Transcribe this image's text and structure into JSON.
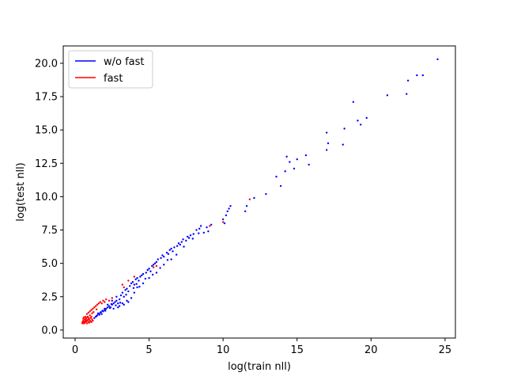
{
  "chart_data": {
    "type": "scatter",
    "title": "",
    "xlabel": "log(train nll)",
    "ylabel": "log(test nll)",
    "xlim": [
      -0.8,
      25.7
    ],
    "ylim": [
      -0.6,
      21.3
    ],
    "xticks": [
      0,
      5,
      10,
      15,
      20,
      25
    ],
    "xtick_labels": [
      "0",
      "5",
      "10",
      "15",
      "20",
      "25"
    ],
    "yticks": [
      0.0,
      2.5,
      5.0,
      7.5,
      10.0,
      12.5,
      15.0,
      17.5,
      20.0
    ],
    "ytick_labels": [
      "0.0",
      "2.5",
      "5.0",
      "7.5",
      "10.0",
      "12.5",
      "15.0",
      "17.5",
      "20.0"
    ],
    "grid": false,
    "legend_position": "top-left",
    "series": [
      {
        "name": "w/o fast",
        "color": "#0000ff",
        "points": [
          [
            1.5,
            1.1
          ],
          [
            1.6,
            1.2
          ],
          [
            1.7,
            1.3
          ],
          [
            1.8,
            1.2
          ],
          [
            1.9,
            1.4
          ],
          [
            2.0,
            1.5
          ],
          [
            1.4,
            1.0
          ],
          [
            1.55,
            1.25
          ],
          [
            1.75,
            1.35
          ],
          [
            1.65,
            1.15
          ],
          [
            2.1,
            1.6
          ],
          [
            2.2,
            1.7
          ],
          [
            2.3,
            1.8
          ],
          [
            2.4,
            1.7
          ],
          [
            2.5,
            1.9
          ],
          [
            2.6,
            2.0
          ],
          [
            2.7,
            2.1
          ],
          [
            2.8,
            2.2
          ],
          [
            2.9,
            2.0
          ],
          [
            3.0,
            2.3
          ],
          [
            2.2,
            1.9
          ],
          [
            2.5,
            2.2
          ],
          [
            2.8,
            2.5
          ],
          [
            3.1,
            2.6
          ],
          [
            3.2,
            2.8
          ],
          [
            3.3,
            2.5
          ],
          [
            3.4,
            3.0
          ],
          [
            3.5,
            3.1
          ],
          [
            3.6,
            2.9
          ],
          [
            3.7,
            3.3
          ],
          [
            3.0,
            1.8
          ],
          [
            3.2,
            2.0
          ],
          [
            3.5,
            2.2
          ],
          [
            3.8,
            2.4
          ],
          [
            4.0,
            2.8
          ],
          [
            2.6,
            1.6
          ],
          [
            2.9,
            1.7
          ],
          [
            3.3,
            1.9
          ],
          [
            3.6,
            2.1
          ],
          [
            2.0,
            1.6
          ],
          [
            3.8,
            3.5
          ],
          [
            3.9,
            3.6
          ],
          [
            4.0,
            3.4
          ],
          [
            4.1,
            3.8
          ],
          [
            4.2,
            3.9
          ],
          [
            4.3,
            3.7
          ],
          [
            4.4,
            4.0
          ],
          [
            4.5,
            4.1
          ],
          [
            4.6,
            4.2
          ],
          [
            4.8,
            4.3
          ],
          [
            4.9,
            4.5
          ],
          [
            5.0,
            4.6
          ],
          [
            5.1,
            4.4
          ],
          [
            5.2,
            4.8
          ],
          [
            5.3,
            4.9
          ],
          [
            5.4,
            5.0
          ],
          [
            5.5,
            5.1
          ],
          [
            5.6,
            5.3
          ],
          [
            5.8,
            5.4
          ],
          [
            5.9,
            5.6
          ],
          [
            6.0,
            5.5
          ],
          [
            6.2,
            5.8
          ],
          [
            6.3,
            5.7
          ],
          [
            6.4,
            6.0
          ],
          [
            6.5,
            6.1
          ],
          [
            6.6,
            5.9
          ],
          [
            6.7,
            6.2
          ],
          [
            6.9,
            6.3
          ],
          [
            7.0,
            6.5
          ],
          [
            7.1,
            6.4
          ],
          [
            7.2,
            6.6
          ],
          [
            7.3,
            6.8
          ],
          [
            7.5,
            6.7
          ],
          [
            7.6,
            7.0
          ],
          [
            7.7,
            6.9
          ],
          [
            7.8,
            7.1
          ],
          [
            8.0,
            7.2
          ],
          [
            8.2,
            7.5
          ],
          [
            8.4,
            7.6
          ],
          [
            8.5,
            7.8
          ],
          [
            8.7,
            7.3
          ],
          [
            8.9,
            7.7
          ],
          [
            9.0,
            7.4
          ],
          [
            9.2,
            7.9
          ],
          [
            4.6,
            3.5
          ],
          [
            4.2,
            3.2
          ],
          [
            5.0,
            3.9
          ],
          [
            5.5,
            4.3
          ],
          [
            6.0,
            4.9
          ],
          [
            6.5,
            5.3
          ],
          [
            10.0,
            8.3
          ],
          [
            10.1,
            8.0
          ],
          [
            10.2,
            8.6
          ],
          [
            10.3,
            8.9
          ],
          [
            10.4,
            9.1
          ],
          [
            10.5,
            9.3
          ],
          [
            11.5,
            8.9
          ],
          [
            11.6,
            9.3
          ],
          [
            12.1,
            9.9
          ],
          [
            12.9,
            10.2
          ],
          [
            13.6,
            11.5
          ],
          [
            13.9,
            10.8
          ],
          [
            14.3,
            13.0
          ],
          [
            14.5,
            12.6
          ],
          [
            14.8,
            12.1
          ],
          [
            15.0,
            12.8
          ],
          [
            15.6,
            13.1
          ],
          [
            15.8,
            12.4
          ],
          [
            14.2,
            11.9
          ],
          [
            17.0,
            14.8
          ],
          [
            17.1,
            14.0
          ],
          [
            17.0,
            13.5
          ],
          [
            18.1,
            13.9
          ],
          [
            18.2,
            15.1
          ],
          [
            18.8,
            17.1
          ],
          [
            19.1,
            15.7
          ],
          [
            19.3,
            15.4
          ],
          [
            19.7,
            15.9
          ],
          [
            21.1,
            17.6
          ],
          [
            22.4,
            17.7
          ],
          [
            22.5,
            18.7
          ],
          [
            23.1,
            19.1
          ],
          [
            23.5,
            19.1
          ],
          [
            24.5,
            20.3
          ],
          [
            1.3,
            0.9
          ],
          [
            1.45,
            1.05
          ],
          [
            1.85,
            1.45
          ],
          [
            2.05,
            1.45
          ],
          [
            2.35,
            1.65
          ],
          [
            2.45,
            1.95
          ],
          [
            2.75,
            1.85
          ],
          [
            3.05,
            2.05
          ],
          [
            3.45,
            2.65
          ],
          [
            3.95,
            3.15
          ],
          [
            4.15,
            3.45
          ],
          [
            4.35,
            3.25
          ],
          [
            4.75,
            3.85
          ],
          [
            5.25,
            4.15
          ],
          [
            5.75,
            4.65
          ],
          [
            6.25,
            5.25
          ],
          [
            6.85,
            5.65
          ],
          [
            7.35,
            6.25
          ],
          [
            7.95,
            6.85
          ],
          [
            8.35,
            7.25
          ]
        ]
      },
      {
        "name": "fast",
        "color": "#ff0000",
        "points": [
          [
            0.5,
            0.6
          ],
          [
            0.55,
            0.7
          ],
          [
            0.6,
            0.5
          ],
          [
            0.65,
            0.8
          ],
          [
            0.7,
            0.6
          ],
          [
            0.75,
            0.9
          ],
          [
            0.8,
            0.7
          ],
          [
            0.85,
            1.0
          ],
          [
            0.9,
            0.6
          ],
          [
            0.95,
            0.8
          ],
          [
            1.0,
            0.7
          ],
          [
            1.05,
            0.9
          ],
          [
            1.1,
            0.6
          ],
          [
            1.15,
            0.8
          ],
          [
            1.2,
            0.7
          ],
          [
            0.5,
            0.5
          ],
          [
            0.6,
            0.6
          ],
          [
            0.7,
            0.7
          ],
          [
            0.8,
            0.5
          ],
          [
            0.9,
            0.9
          ],
          [
            1.0,
            1.1
          ],
          [
            1.1,
            1.0
          ],
          [
            0.65,
            0.55
          ],
          [
            0.75,
            0.65
          ],
          [
            0.85,
            0.75
          ],
          [
            0.95,
            0.55
          ],
          [
            1.05,
            0.65
          ],
          [
            0.55,
            0.85
          ],
          [
            0.7,
            1.0
          ],
          [
            0.8,
            1.2
          ],
          [
            0.9,
            1.3
          ],
          [
            1.0,
            1.4
          ],
          [
            1.1,
            1.5
          ],
          [
            1.2,
            1.6
          ],
          [
            1.3,
            1.7
          ],
          [
            1.4,
            1.8
          ],
          [
            1.5,
            1.9
          ],
          [
            1.6,
            2.0
          ],
          [
            1.7,
            2.1
          ],
          [
            1.8,
            2.0
          ],
          [
            1.9,
            2.2
          ],
          [
            2.0,
            2.1
          ],
          [
            2.1,
            2.3
          ],
          [
            2.3,
            2.2
          ],
          [
            2.5,
            2.4
          ],
          [
            3.2,
            3.4
          ],
          [
            3.3,
            3.2
          ],
          [
            3.6,
            3.7
          ],
          [
            4.0,
            4.0
          ],
          [
            5.3,
            4.7
          ],
          [
            5.5,
            4.8
          ],
          [
            9.1,
            7.8
          ],
          [
            10.0,
            8.1
          ],
          [
            11.8,
            9.8
          ],
          [
            1.25,
            1.35
          ],
          [
            1.45,
            1.55
          ],
          [
            1.15,
            1.25
          ],
          [
            0.6,
            0.95
          ],
          [
            0.72,
            0.82
          ],
          [
            0.88,
            0.92
          ]
        ]
      }
    ]
  }
}
